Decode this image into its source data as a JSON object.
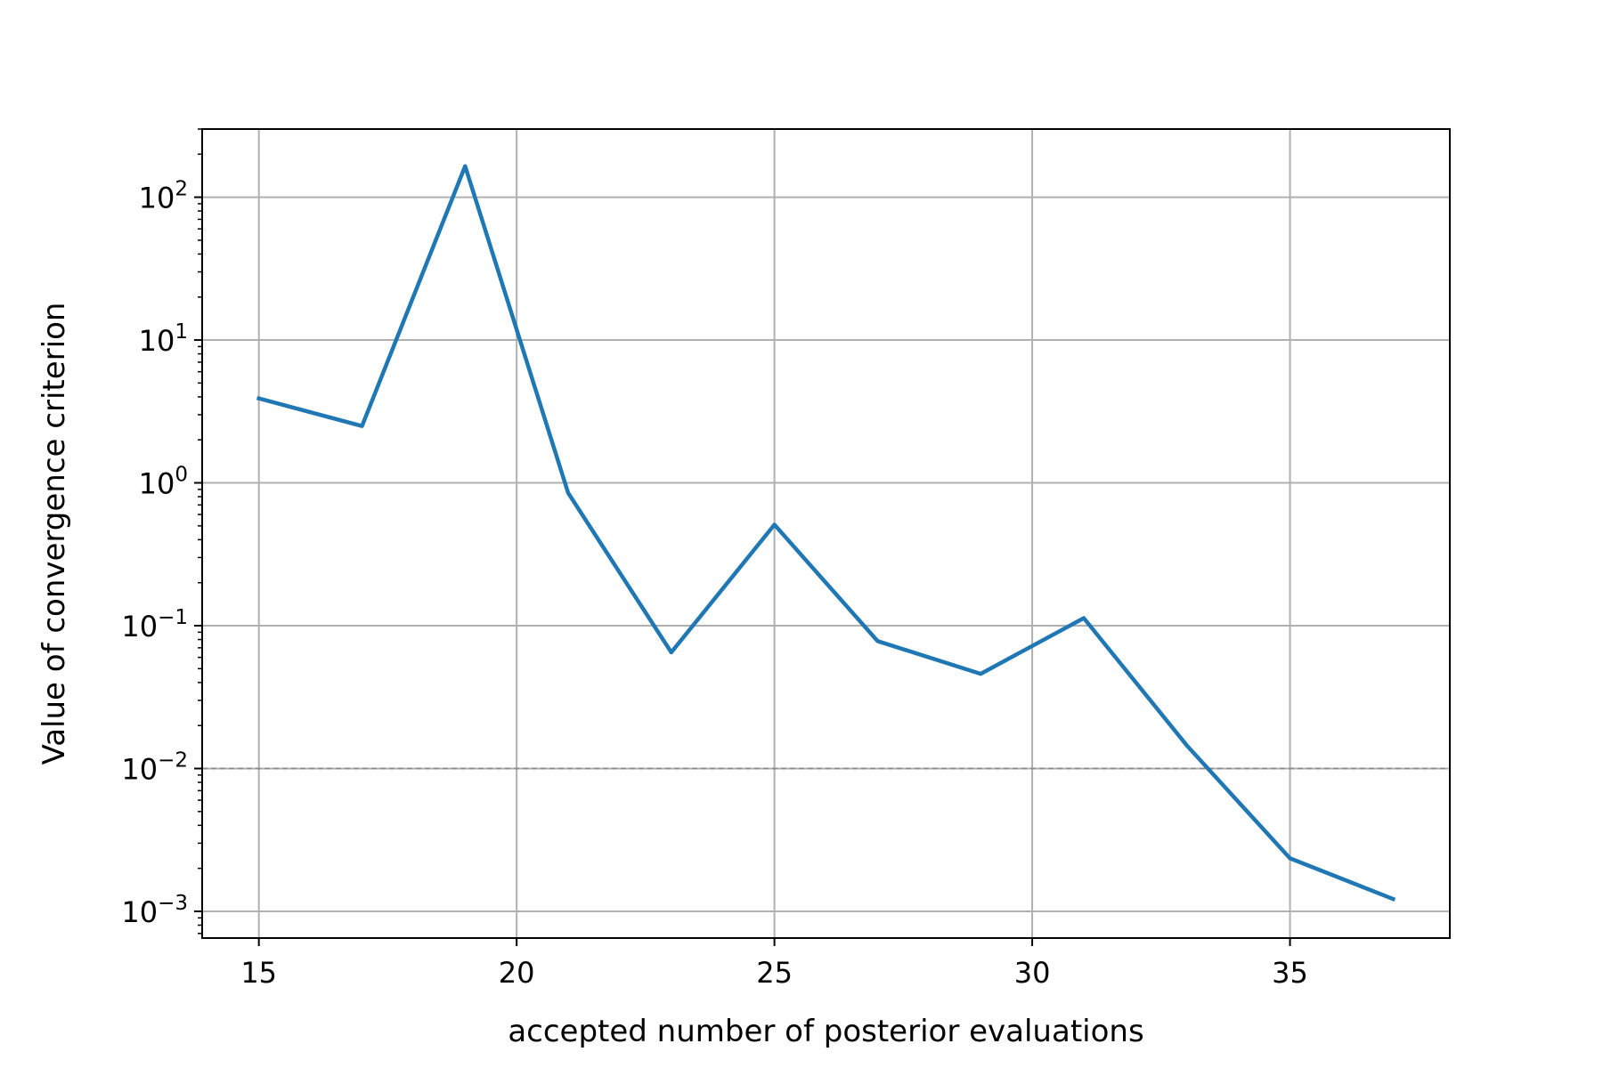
{
  "chart_data": {
    "type": "line",
    "title": "",
    "xlabel": "accepted number of posterior evaluations",
    "ylabel": "Value of convergence criterion",
    "x_ticks": [
      15,
      20,
      25,
      30,
      35
    ],
    "y_ticks": [
      {
        "value": 0.001,
        "base": "10",
        "exp": "−3"
      },
      {
        "value": 0.01,
        "base": "10",
        "exp": "−2"
      },
      {
        "value": 0.1,
        "base": "10",
        "exp": "−1"
      },
      {
        "value": 1,
        "base": "10",
        "exp": "0"
      },
      {
        "value": 10,
        "base": "10",
        "exp": "1"
      },
      {
        "value": 100,
        "base": "10",
        "exp": "2"
      }
    ],
    "xlim": [
      13.9,
      38.1
    ],
    "ylim": [
      0.00065,
      300
    ],
    "y_scale": "log",
    "grid": true,
    "threshold": {
      "value": 0.01,
      "style": "dashed",
      "color": "#8c8c8c"
    },
    "series": [
      {
        "color": "#1f77b4",
        "x": [
          15,
          17,
          19,
          21,
          23,
          25,
          27,
          29,
          31,
          33,
          35,
          37
        ],
        "y": [
          3.9,
          2.5,
          165,
          0.85,
          0.065,
          0.51,
          0.078,
          0.046,
          0.113,
          0.0145,
          0.00235,
          0.00122
        ]
      }
    ]
  }
}
